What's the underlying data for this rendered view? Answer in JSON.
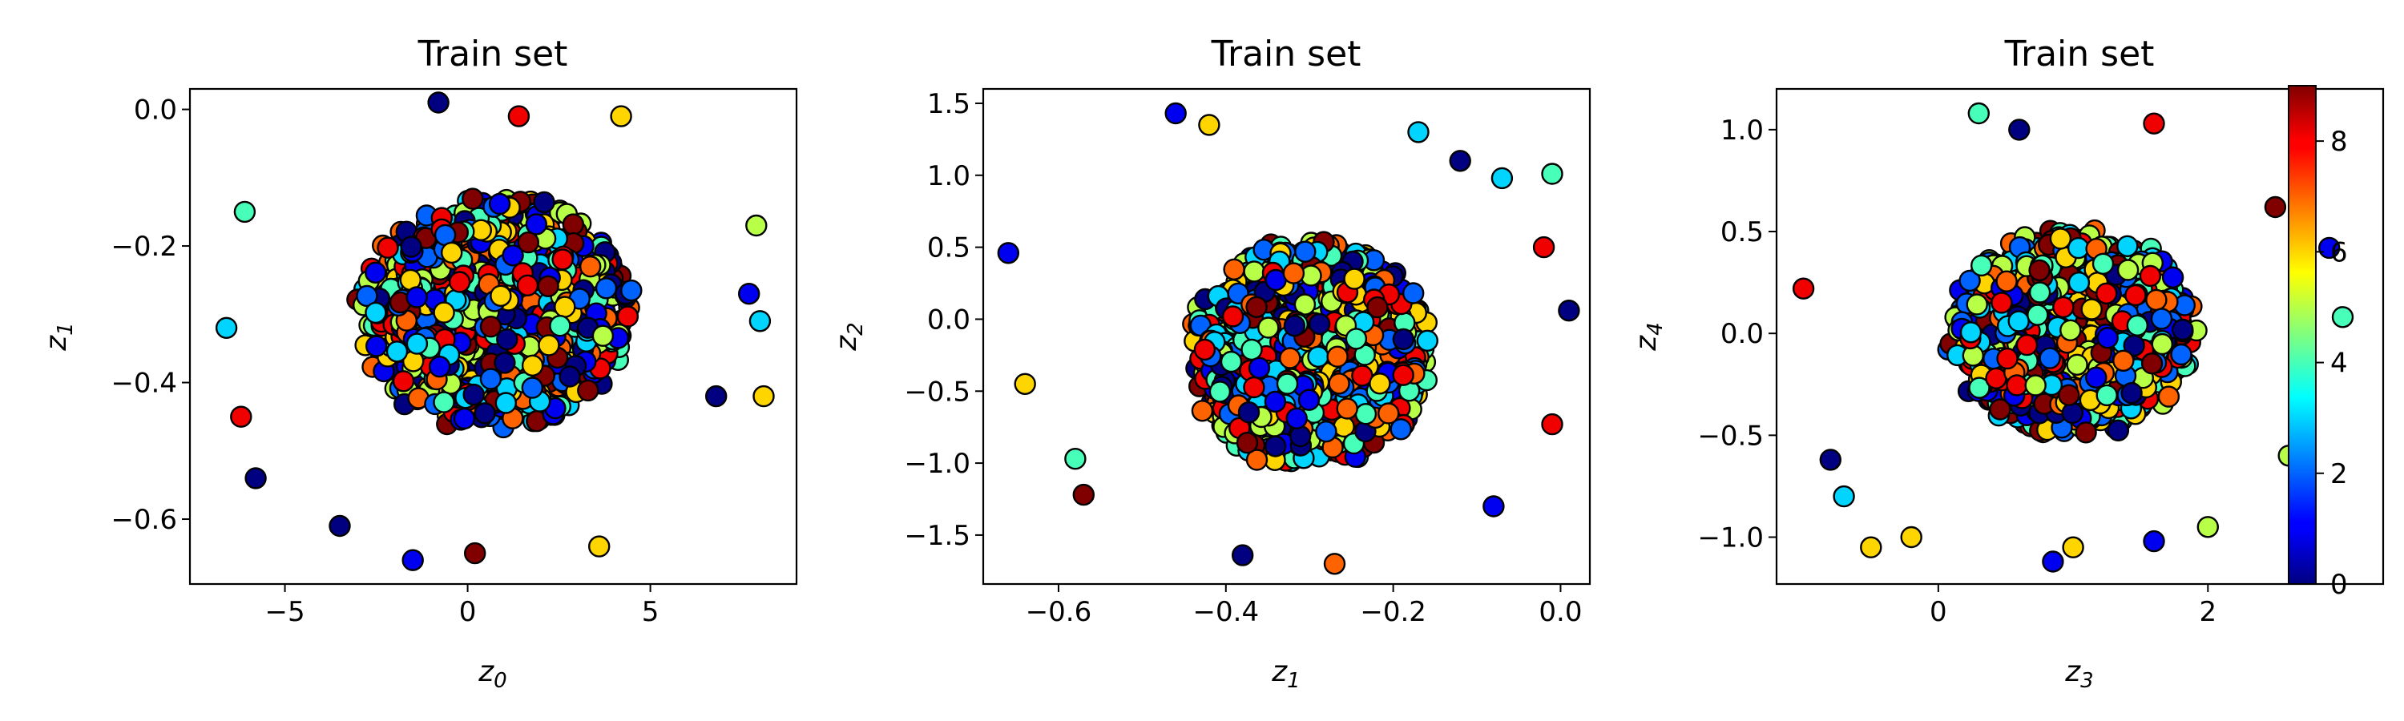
{
  "colormap": "jet",
  "chart_data": [
    {
      "type": "scatter",
      "title": "Train set",
      "xlabel_var": "z",
      "xlabel_sub": "0",
      "ylabel_var": "z",
      "ylabel_sub": "1",
      "xlim": [
        -7.6,
        9.0
      ],
      "ylim": [
        -0.695,
        0.03
      ],
      "xticks": [
        -5,
        0,
        5
      ],
      "xtick_labels": [
        "−5",
        "0",
        "5"
      ],
      "yticks": [
        0.0,
        -0.2,
        -0.4,
        -0.6
      ],
      "ytick_labels": [
        "0.0",
        "−0.2",
        "−0.4",
        "−0.6"
      ],
      "cloud": {
        "center": [
          0.8,
          -0.3
        ],
        "spread": [
          3.4,
          0.155
        ],
        "n": 1500,
        "seed": 11
      },
      "points": [
        {
          "x": -6.6,
          "y": -0.32,
          "c": 3
        },
        {
          "x": -6.2,
          "y": -0.45,
          "c": 8
        },
        {
          "x": -5.8,
          "y": -0.54,
          "c": 0
        },
        {
          "x": -6.1,
          "y": -0.15,
          "c": 4
        },
        {
          "x": -3.5,
          "y": -0.61,
          "c": 0
        },
        {
          "x": -1.5,
          "y": -0.66,
          "c": 1
        },
        {
          "x": 0.2,
          "y": -0.65,
          "c": 9
        },
        {
          "x": 3.6,
          "y": -0.64,
          "c": 6
        },
        {
          "x": -0.8,
          "y": 0.01,
          "c": 0
        },
        {
          "x": 1.4,
          "y": -0.01,
          "c": 8
        },
        {
          "x": 7.9,
          "y": -0.17,
          "c": 5
        },
        {
          "x": 8.1,
          "y": -0.42,
          "c": 6
        },
        {
          "x": 8.0,
          "y": -0.31,
          "c": 3
        },
        {
          "x": 7.7,
          "y": -0.27,
          "c": 1
        },
        {
          "x": 6.8,
          "y": -0.42,
          "c": 0
        },
        {
          "x": 4.2,
          "y": -0.01,
          "c": 6
        }
      ]
    },
    {
      "type": "scatter",
      "title": "Train set",
      "xlabel_var": "z",
      "xlabel_sub": "1",
      "ylabel_var": "z",
      "ylabel_sub": "2",
      "xlim": [
        -0.69,
        0.035
      ],
      "ylim": [
        -1.84,
        1.6
      ],
      "xticks": [
        -0.6,
        -0.4,
        -0.2,
        0.0
      ],
      "xtick_labels": [
        "−0.6",
        "−0.4",
        "−0.2",
        "0.0"
      ],
      "yticks": [
        1.5,
        1.0,
        0.5,
        0.0,
        -0.5,
        -1.0,
        -1.5
      ],
      "ytick_labels": [
        "1.5",
        "1.0",
        "0.5",
        "0.0",
        "−0.5",
        "−1.0",
        "−1.5"
      ],
      "cloud": {
        "center": [
          -0.3,
          -0.25
        ],
        "spread": [
          0.13,
          0.72
        ],
        "n": 1500,
        "seed": 23
      },
      "points": [
        {
          "x": -0.66,
          "y": 0.46,
          "c": 1
        },
        {
          "x": -0.64,
          "y": -0.45,
          "c": 6
        },
        {
          "x": -0.58,
          "y": -0.97,
          "c": 4
        },
        {
          "x": -0.57,
          "y": -1.22,
          "c": 9
        },
        {
          "x": -0.46,
          "y": 1.43,
          "c": 1
        },
        {
          "x": -0.42,
          "y": 1.35,
          "c": 6
        },
        {
          "x": -0.38,
          "y": -1.64,
          "c": 0
        },
        {
          "x": -0.27,
          "y": -1.7,
          "c": 7
        },
        {
          "x": -0.17,
          "y": 1.3,
          "c": 3
        },
        {
          "x": -0.12,
          "y": 1.1,
          "c": 0
        },
        {
          "x": -0.07,
          "y": 0.98,
          "c": 3
        },
        {
          "x": -0.01,
          "y": 1.01,
          "c": 4
        },
        {
          "x": -0.02,
          "y": 0.5,
          "c": 8
        },
        {
          "x": 0.01,
          "y": 0.06,
          "c": 0
        },
        {
          "x": -0.01,
          "y": -0.73,
          "c": 8
        },
        {
          "x": -0.08,
          "y": -1.3,
          "c": 1
        }
      ]
    },
    {
      "type": "scatter",
      "title": "Train set",
      "xlabel_var": "z",
      "xlabel_sub": "3",
      "ylabel_var": "z",
      "ylabel_sub": "4",
      "xlim": [
        -1.2,
        3.3
      ],
      "ylim": [
        -1.23,
        1.2
      ],
      "xticks": [
        0,
        2
      ],
      "xtick_labels": [
        "0",
        "2"
      ],
      "yticks": [
        1.0,
        0.5,
        0.0,
        -0.5,
        -1.0
      ],
      "ytick_labels": [
        "1.0",
        "0.5",
        "0.0",
        "−0.5",
        "−1.0"
      ],
      "cloud": {
        "center": [
          1.0,
          0.0
        ],
        "spread": [
          0.85,
          0.46
        ],
        "n": 1500,
        "seed": 37
      },
      "points": [
        {
          "x": -1.0,
          "y": 0.22,
          "c": 8
        },
        {
          "x": -0.8,
          "y": -0.62,
          "c": 0
        },
        {
          "x": -0.7,
          "y": -0.8,
          "c": 3
        },
        {
          "x": -0.5,
          "y": -1.05,
          "c": 6
        },
        {
          "x": 0.3,
          "y": 1.08,
          "c": 4
        },
        {
          "x": 0.6,
          "y": 1.0,
          "c": 0
        },
        {
          "x": 0.85,
          "y": -1.12,
          "c": 1
        },
        {
          "x": 1.6,
          "y": -1.02,
          "c": 1
        },
        {
          "x": 2.0,
          "y": -0.95,
          "c": 5
        },
        {
          "x": 1.6,
          "y": 1.03,
          "c": 8
        },
        {
          "x": 2.5,
          "y": 0.62,
          "c": 9
        },
        {
          "x": 2.9,
          "y": 0.42,
          "c": 1
        },
        {
          "x": 3.0,
          "y": 0.08,
          "c": 4
        },
        {
          "x": 2.6,
          "y": -0.6,
          "c": 5
        },
        {
          "x": -0.2,
          "y": -1.0,
          "c": 6
        },
        {
          "x": 1.0,
          "y": -1.05,
          "c": 6
        }
      ]
    }
  ],
  "colorbar": {
    "range": [
      0,
      9
    ],
    "ticks": [
      0,
      2,
      4,
      6,
      8
    ],
    "tick_labels": [
      "0",
      "2",
      "4",
      "6",
      "8"
    ]
  }
}
